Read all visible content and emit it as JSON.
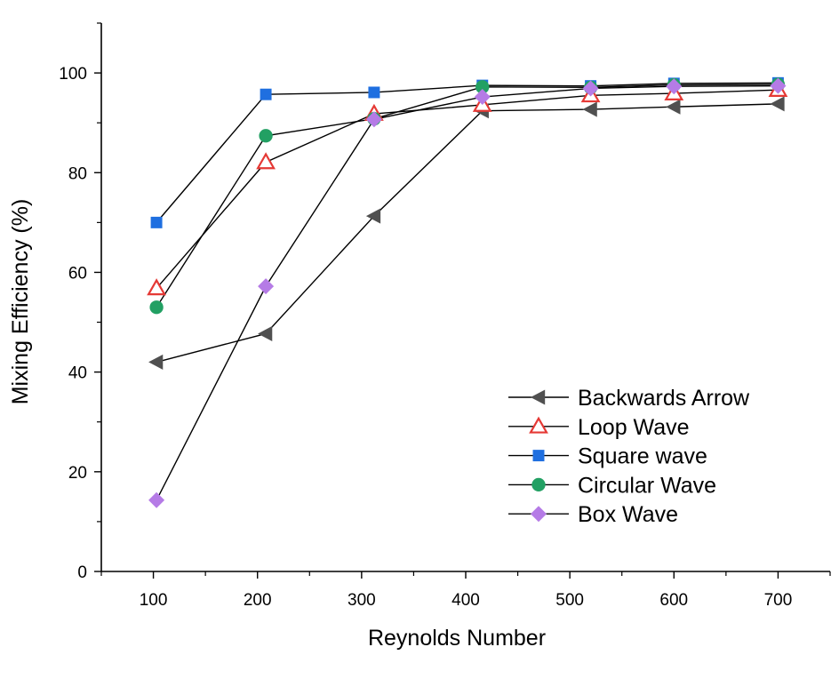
{
  "chart_data": {
    "type": "line",
    "title": "",
    "xlabel": "Reynolds Number",
    "ylabel": "Mixing Efficiency (%)",
    "xlim": [
      50,
      750
    ],
    "ylim": [
      0,
      110
    ],
    "xticks": [
      100,
      200,
      300,
      400,
      500,
      600,
      700
    ],
    "yticks": [
      0,
      20,
      40,
      60,
      80,
      100
    ],
    "x_tick_labels": [
      "100",
      "200",
      "300",
      "400",
      "500",
      "600",
      "700"
    ],
    "y_tick_labels": [
      "0",
      "20",
      "40",
      "60",
      "80",
      "100"
    ],
    "grid": false,
    "legend_position": "bottom-right",
    "series": [
      {
        "name": "Backwards Arrow",
        "marker": "left-triangle",
        "color": "#505050",
        "x": [
          103,
          208,
          312,
          416,
          520,
          600,
          700
        ],
        "y": [
          42,
          47.7,
          71.3,
          92.4,
          92.7,
          93.2,
          93.8
        ]
      },
      {
        "name": "Loop Wave",
        "marker": "open-triangle",
        "color": "#e53935",
        "x": [
          103,
          208,
          312,
          416,
          520,
          600,
          700
        ],
        "y": [
          56.8,
          82.1,
          91.8,
          93.6,
          95.5,
          95.9,
          96.6
        ]
      },
      {
        "name": "Square wave",
        "marker": "square",
        "color": "#1f6fe0",
        "x": [
          103,
          208,
          312,
          416,
          520,
          600,
          700
        ],
        "y": [
          70,
          95.7,
          96.1,
          97.5,
          97.4,
          97.9,
          98
        ]
      },
      {
        "name": "Circular Wave",
        "marker": "circle",
        "color": "#22a063",
        "x": [
          103,
          208,
          312,
          416,
          520,
          600,
          700
        ],
        "y": [
          53,
          87.4,
          90.8,
          97.2,
          97.1,
          97.6,
          97.7
        ]
      },
      {
        "name": "Box Wave",
        "marker": "diamond",
        "color": "#b57be6",
        "x": [
          103,
          208,
          312,
          416,
          520,
          600,
          700
        ],
        "y": [
          14.3,
          57.2,
          90.7,
          95.2,
          96.9,
          97.3,
          97.4
        ]
      }
    ]
  }
}
